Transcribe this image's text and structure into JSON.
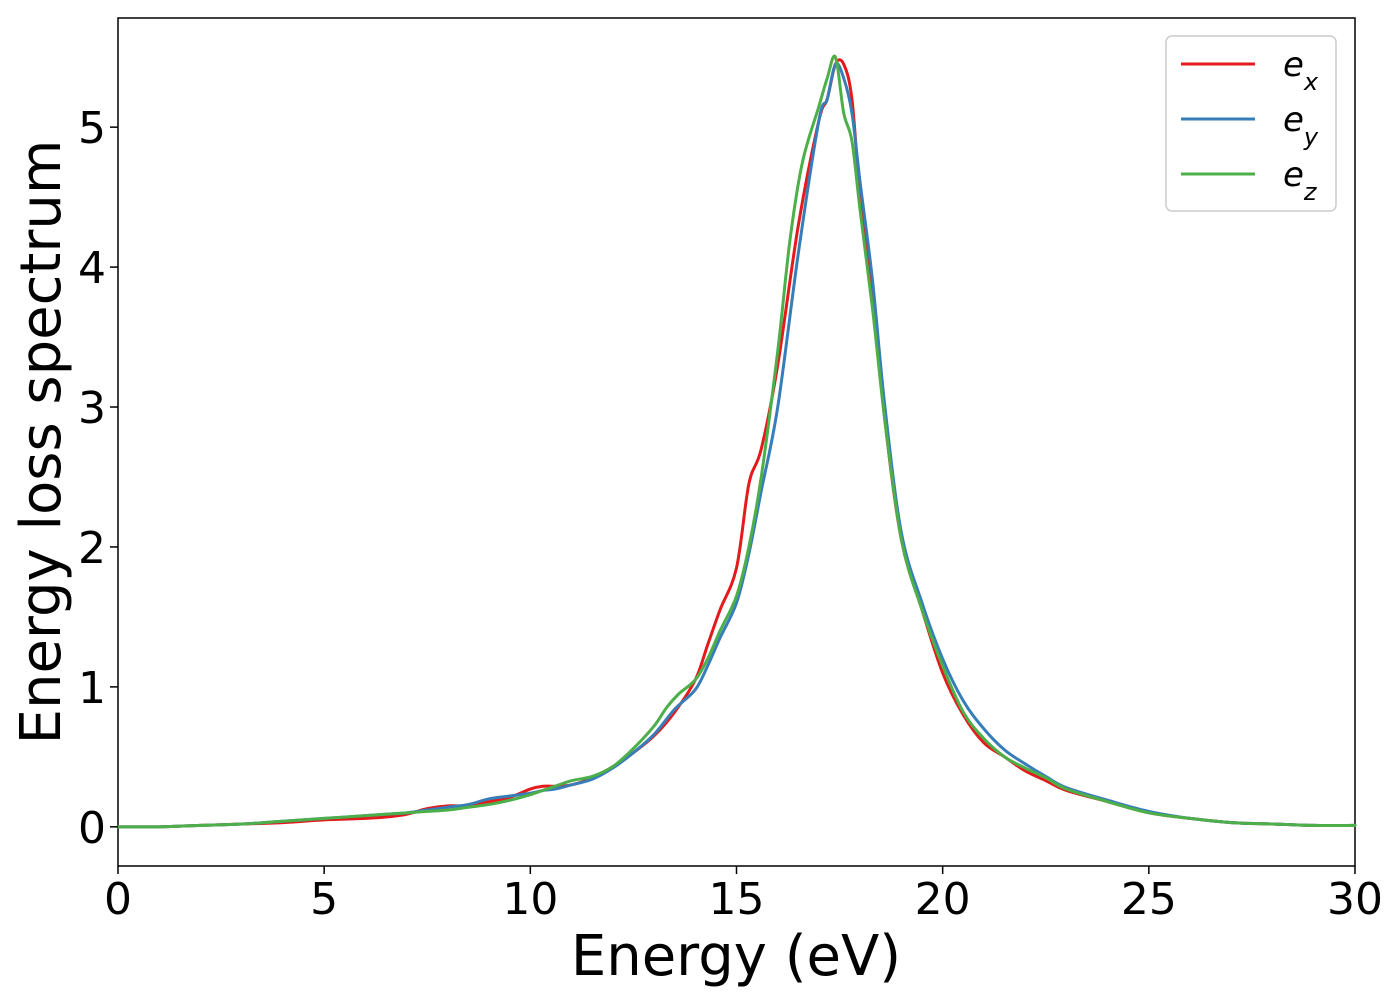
{
  "chart_data": {
    "type": "line",
    "title": "",
    "xlabel": "Energy (eV)",
    "ylabel": "Energy loss spectrum",
    "xlim": [
      0,
      30
    ],
    "ylim": [
      -0.28,
      5.78
    ],
    "xticks": [
      0,
      5,
      10,
      15,
      20,
      25,
      30
    ],
    "yticks": [
      0,
      1,
      2,
      3,
      4,
      5
    ],
    "grid": false,
    "legend_position": "top-right",
    "series": [
      {
        "name": "e",
        "subscript": "x",
        "color": "#e41a1c",
        "x": [
          0,
          1,
          2,
          3,
          4,
          5,
          6,
          6.5,
          7,
          7.5,
          8,
          8.5,
          9,
          9.5,
          10,
          10.3,
          10.6,
          11,
          11.5,
          12,
          12.5,
          13,
          13.5,
          14,
          14.3,
          14.6,
          15,
          15.3,
          15.6,
          16,
          16.5,
          17,
          17.2,
          17.4,
          17.6,
          17.8,
          18,
          18.3,
          18.6,
          19,
          19.5,
          20,
          20.5,
          21,
          21.5,
          22,
          22.5,
          23,
          24,
          25,
          26,
          27,
          28,
          29,
          30
        ],
        "values": [
          0,
          0,
          0.01,
          0.02,
          0.03,
          0.05,
          0.06,
          0.07,
          0.09,
          0.13,
          0.15,
          0.15,
          0.18,
          0.21,
          0.27,
          0.29,
          0.29,
          0.3,
          0.35,
          0.43,
          0.53,
          0.65,
          0.82,
          1.05,
          1.3,
          1.55,
          1.85,
          2.45,
          2.7,
          3.3,
          4.3,
          5.05,
          5.2,
          5.45,
          5.45,
          5.2,
          4.5,
          3.8,
          2.9,
          2.05,
          1.55,
          1.1,
          0.8,
          0.6,
          0.5,
          0.4,
          0.33,
          0.26,
          0.18,
          0.1,
          0.06,
          0.03,
          0.02,
          0.01,
          0.01
        ]
      },
      {
        "name": "e",
        "subscript": "y",
        "color": "#377eb8",
        "x": [
          0,
          1,
          2,
          3,
          4,
          5,
          6,
          6.5,
          7,
          7.5,
          8,
          8.5,
          9,
          9.5,
          10,
          10.3,
          10.6,
          11,
          11.5,
          12,
          12.5,
          13,
          13.5,
          14,
          14.3,
          14.6,
          15,
          15.3,
          15.6,
          16,
          16.5,
          17,
          17.2,
          17.4,
          17.6,
          17.8,
          18,
          18.3,
          18.6,
          19,
          19.5,
          20,
          20.5,
          21,
          21.5,
          22,
          22.5,
          23,
          24,
          25,
          26,
          27,
          28,
          29,
          30
        ],
        "values": [
          0,
          0,
          0.01,
          0.02,
          0.04,
          0.06,
          0.08,
          0.09,
          0.1,
          0.12,
          0.14,
          0.16,
          0.2,
          0.22,
          0.24,
          0.26,
          0.27,
          0.3,
          0.34,
          0.42,
          0.53,
          0.66,
          0.84,
          0.98,
          1.15,
          1.35,
          1.6,
          1.95,
          2.4,
          3,
          4.1,
          5.05,
          5.2,
          5.45,
          5.35,
          5.1,
          4.6,
          3.9,
          3,
          2.1,
          1.6,
          1.2,
          0.9,
          0.7,
          0.55,
          0.45,
          0.36,
          0.28,
          0.19,
          0.11,
          0.06,
          0.03,
          0.02,
          0.01,
          0.01
        ]
      },
      {
        "name": "e",
        "subscript": "z",
        "color": "#4daf4a",
        "x": [
          0,
          1,
          2,
          3,
          4,
          5,
          6,
          6.5,
          7,
          7.5,
          8,
          8.5,
          9,
          9.5,
          10,
          10.3,
          10.6,
          11,
          11.5,
          12,
          12.5,
          13,
          13.3,
          13.6,
          14,
          14.3,
          14.6,
          15,
          15.3,
          15.6,
          16,
          16.3,
          16.6,
          17,
          17.2,
          17.4,
          17.6,
          17.8,
          18,
          18.3,
          18.6,
          19,
          19.5,
          20,
          20.5,
          21,
          21.5,
          22,
          22.5,
          23,
          24,
          25,
          26,
          27,
          28,
          29,
          30
        ],
        "values": [
          0,
          0,
          0.01,
          0.02,
          0.04,
          0.06,
          0.08,
          0.09,
          0.1,
          0.11,
          0.12,
          0.14,
          0.16,
          0.19,
          0.23,
          0.26,
          0.29,
          0.33,
          0.36,
          0.43,
          0.56,
          0.72,
          0.85,
          0.95,
          1.05,
          1.2,
          1.4,
          1.65,
          2,
          2.5,
          3.4,
          4.2,
          4.75,
          5.15,
          5.35,
          5.5,
          5.1,
          4.9,
          4.4,
          3.7,
          2.9,
          2.05,
          1.55,
          1.15,
          0.82,
          0.63,
          0.5,
          0.42,
          0.35,
          0.27,
          0.18,
          0.1,
          0.06,
          0.03,
          0.02,
          0.01,
          0.01
        ]
      }
    ]
  }
}
